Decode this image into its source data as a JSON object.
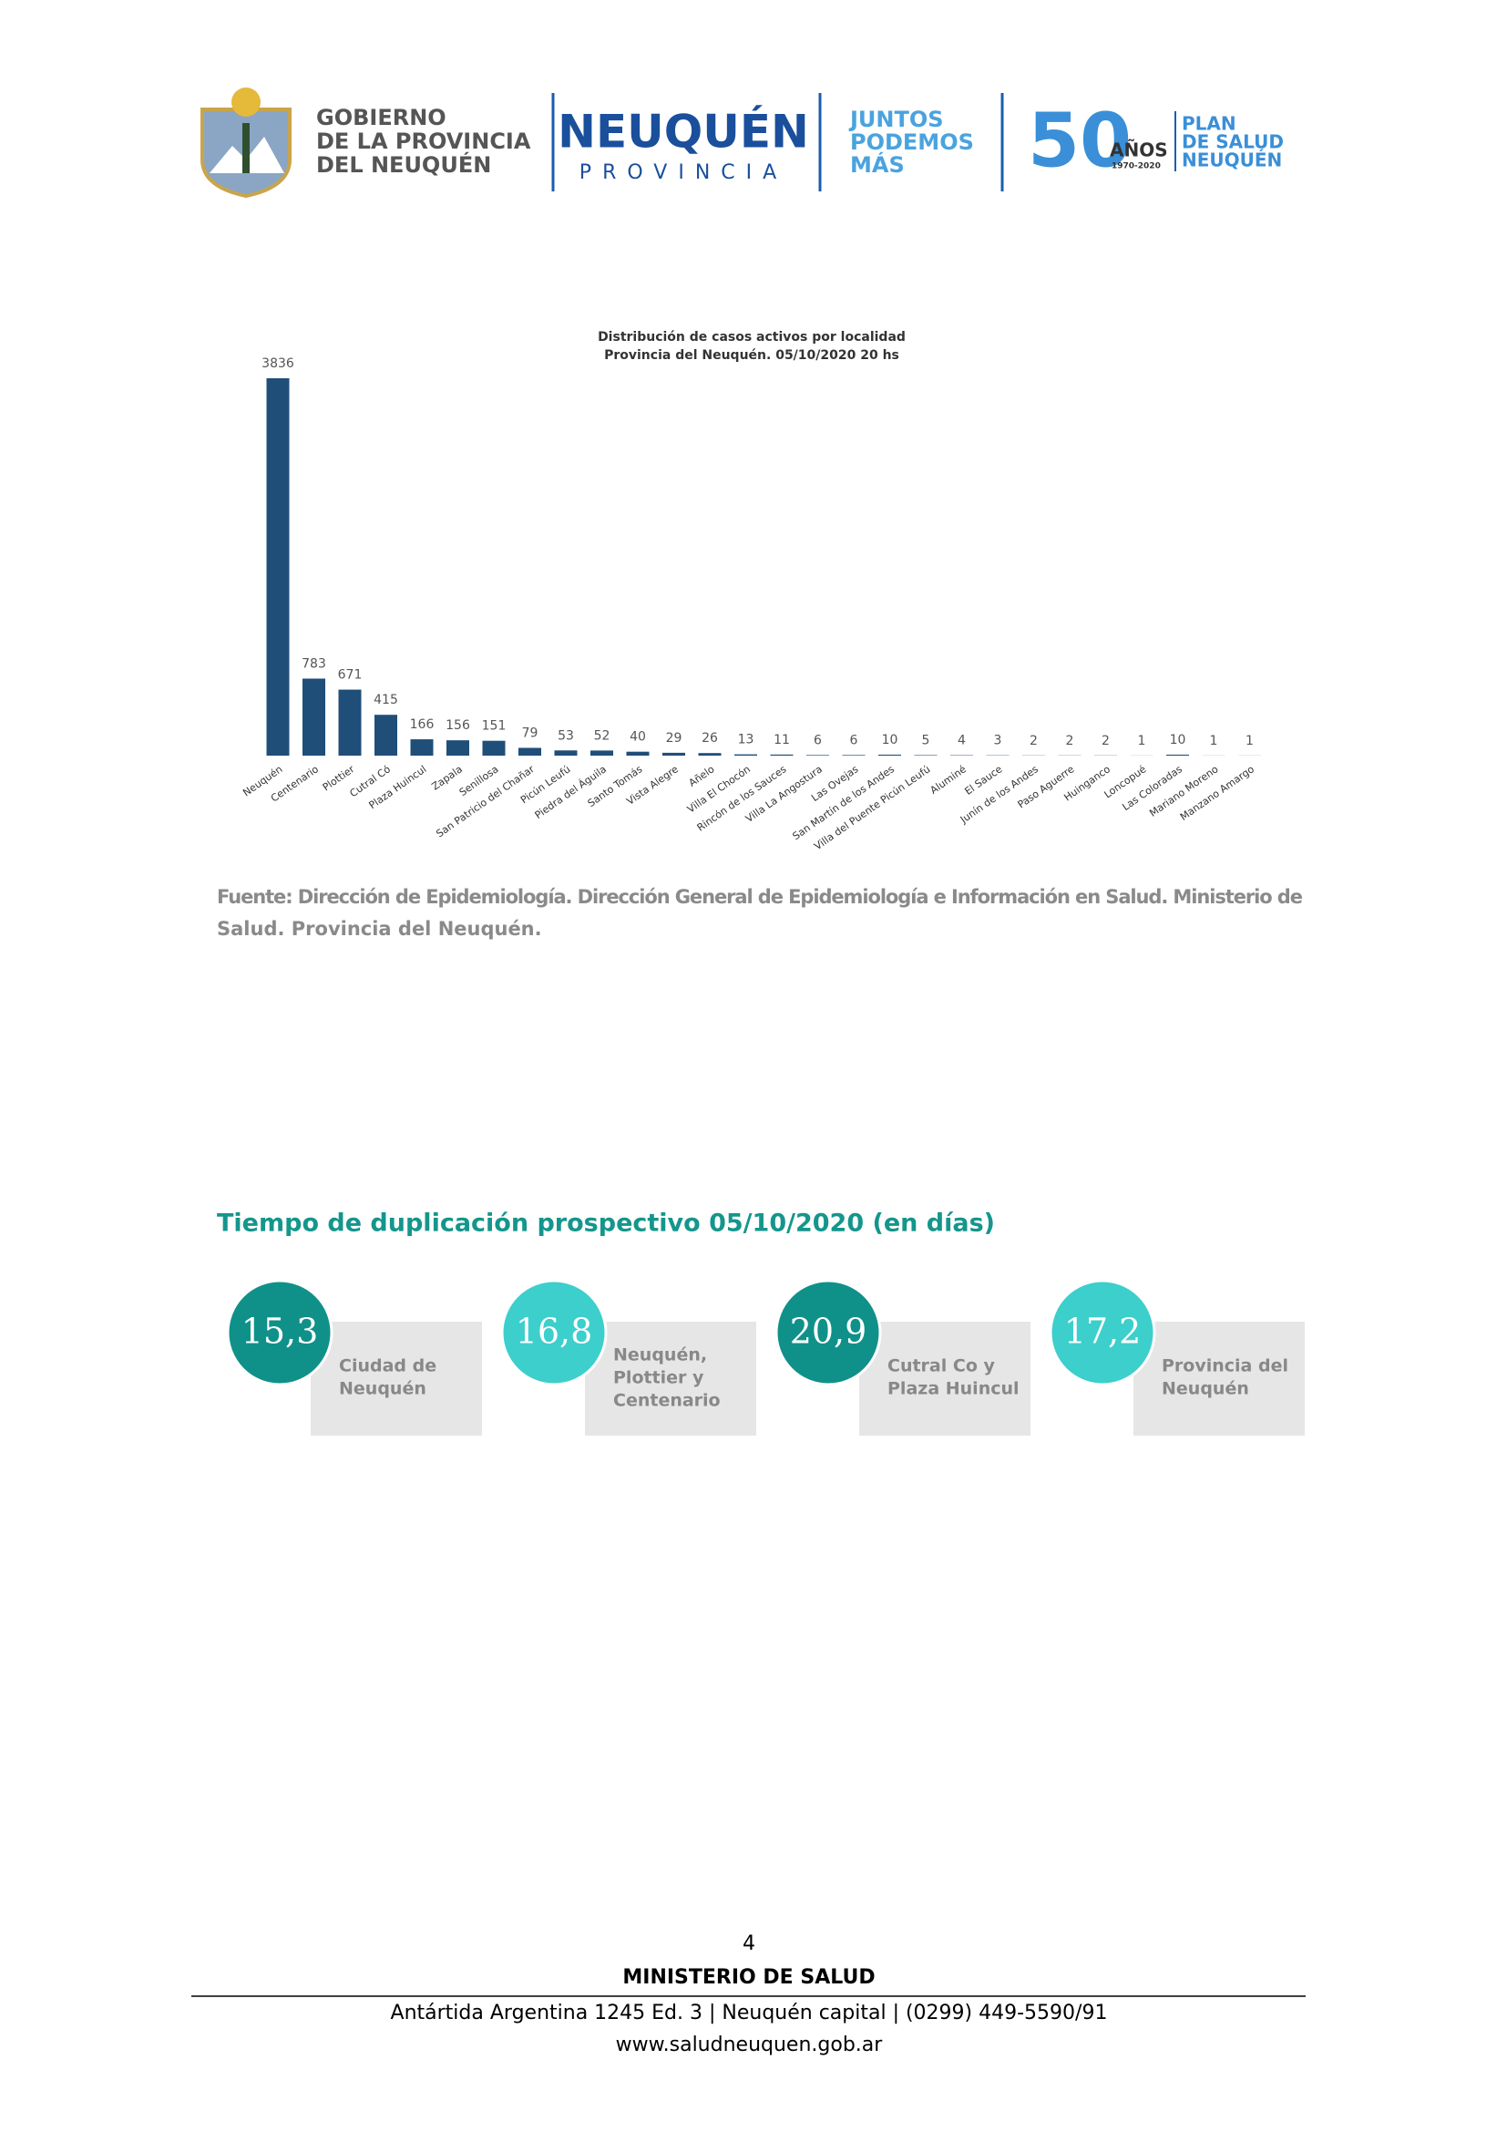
{
  "header": {
    "gov_lines": [
      "GOBIERNO",
      "DE LA PROVINCIA",
      "DEL NEUQUÉN"
    ],
    "brand": "NEUQUÉN",
    "brand_sub": "PROVINCIA",
    "slogan_lines": [
      "JUNTOS",
      "PODEMOS",
      "MÁS"
    ],
    "anniv_number": "50",
    "anniv_word": "AÑOS",
    "anniv_years": "1970-2020",
    "plan_lines": [
      "PLAN",
      "DE SALUD",
      "NEUQUÉN"
    ]
  },
  "chart_data": {
    "type": "bar",
    "title": "Distribución de casos activos por localidad",
    "subtitle": "Provincia del Neuquén.  05/10/2020  20  hs",
    "color": "#1f4e79",
    "categories": [
      "Neuquén",
      "Centenario",
      "Plottier",
      "Cutral Có",
      "Plaza Huincul",
      "Zapala",
      "Senillosa",
      "San Patricio del Chañar",
      "Picún Leufú",
      "Piedra del Águila",
      "Santo Tomás",
      "Vista Alegre",
      "Añelo",
      "Villa El Chocón",
      "Rincón de los Sauces",
      "Villa La Angostura",
      "Las Ovejas",
      "San Martín de los Andes",
      "Villa del Puente Picún Leufú",
      "Aluminé",
      "El Sauce",
      "Junín de los Andes",
      "Paso Aguerre",
      "Huinganco",
      "Loncopué",
      "Las Coloradas",
      "Mariano Moreno",
      "Manzano Amargo"
    ],
    "values": [
      3836,
      783,
      671,
      415,
      166,
      156,
      151,
      79,
      53,
      52,
      40,
      29,
      26,
      13,
      11,
      6,
      6,
      10,
      5,
      4,
      3,
      2,
      2,
      2,
      1,
      10,
      1,
      1
    ]
  },
  "source_lines": [
    "Fuente: Dirección de Epidemiología. Dirección General de Epidemiología e Información en Salud. Ministerio de",
    "Salud. Provincia del Neuquén."
  ],
  "section_title": "Tiempo de duplicación prospectivo 05/10/2020 (en días)",
  "cards": [
    {
      "value": "15,3",
      "label_lines": [
        "Ciudad de",
        "Neuquén"
      ]
    },
    {
      "value": "16,8",
      "label_lines": [
        "Neuquén,",
        "Plottier y",
        "Centenario"
      ]
    },
    {
      "value": "20,9",
      "label_lines": [
        "Cutral Co y",
        "Plaza Huincul"
      ]
    },
    {
      "value": "17,2",
      "label_lines": [
        "Provincia del",
        "Neuquén"
      ]
    }
  ],
  "footer": {
    "page": "4",
    "ministry": "MINISTERIO DE SALUD",
    "address": "Antártida Argentina 1245 Ed. 3 | Neuquén capital | (0299) 449-5590/91",
    "web": "www.saludneuquen.gob.ar"
  }
}
